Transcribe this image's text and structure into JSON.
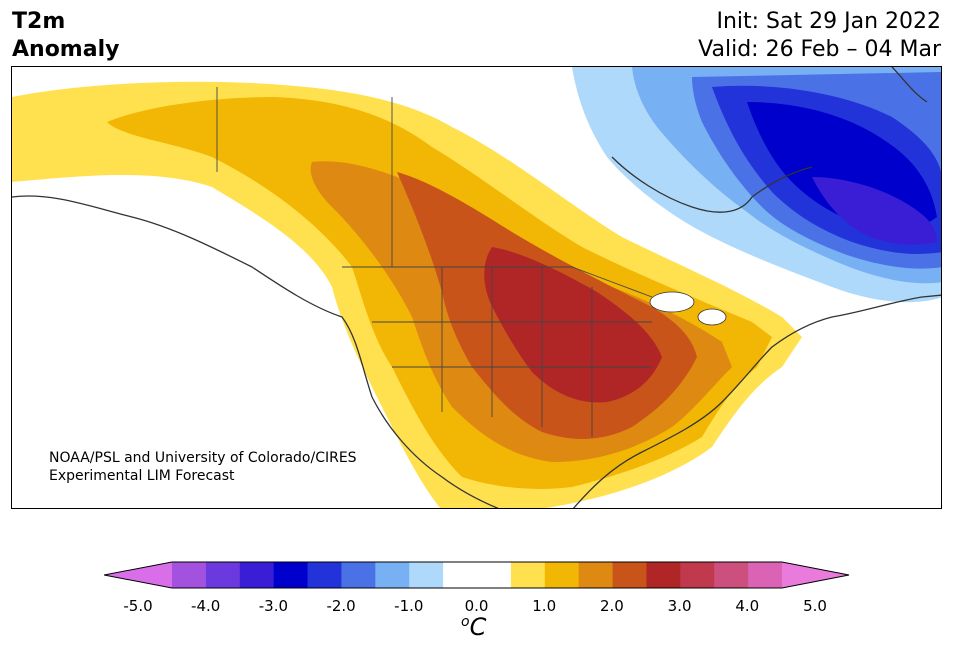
{
  "title": {
    "variable": "T2m",
    "kind": "Anomaly",
    "init": "Init: Sat 29 Jan 2022",
    "valid": "Valid: 26 Feb – 04 Mar"
  },
  "credit": {
    "line1": "NOAA/PSL and University of Colorado/CIRES",
    "line2": "Experimental LIM Forecast"
  },
  "colorbar": {
    "colors": [
      "#d86fe8",
      "#a352e0",
      "#6b3ade",
      "#3a1ed6",
      "#0000cc",
      "#2234d9",
      "#4a72e6",
      "#77b0f3",
      "#aed9fb",
      "#ffffff",
      "#ffffff",
      "#ffe14f",
      "#f2b705",
      "#de8a12",
      "#c8541a",
      "#b02626",
      "#c1394d",
      "#cc4f7e",
      "#da63b6",
      "#e97bdd"
    ],
    "ticks": [
      "-5.0",
      "-4.0",
      "-3.0",
      "-2.0",
      "-1.0",
      "0.0",
      "1.0",
      "2.0",
      "3.0",
      "4.0",
      "5.0"
    ],
    "unit_base": "C",
    "unit_super": "o"
  }
}
